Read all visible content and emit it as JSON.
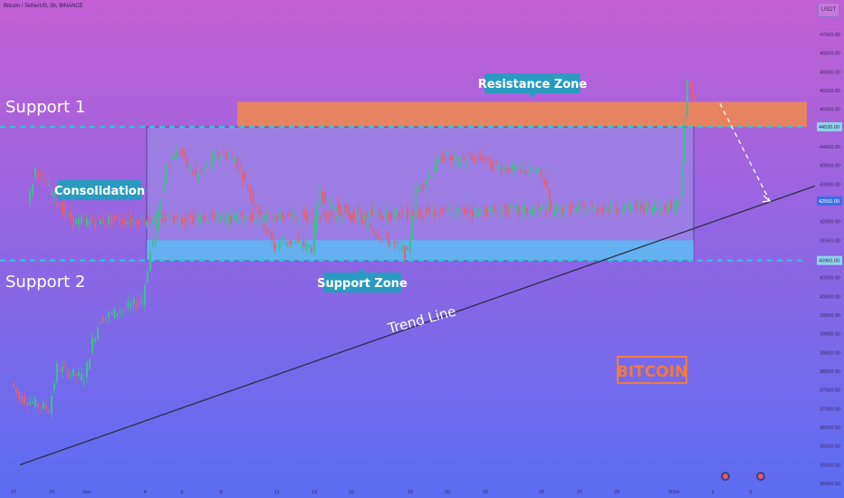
{
  "header": {
    "symbol_line": "Bitcoin / TetherUS, 3h, BINANCE"
  },
  "currency": "USDT",
  "brand_label": "BITCOIN",
  "labels": {
    "support1": "Support 1",
    "support2": "Support 2",
    "consolidation": "Consolidation",
    "resistance_zone": "Resistance Zone",
    "support_zone": "Support Zone",
    "trend_line": "Trend Line"
  },
  "colors": {
    "bg_top": "#c35fd4",
    "bg_bottom": "#5b6df2",
    "resistance_fill": "#f08a4b",
    "support_fill": "#5bb8f2",
    "consolidation_fill": "#9d87e6",
    "up_candle": "#3fbf8f",
    "down_candle": "#e0607a",
    "label_bg": "#2a9bc0",
    "brand": "#f07a40",
    "dashed": "#33c6d9",
    "trend": "#2a2d4a"
  },
  "chart_data": {
    "type": "candlestick",
    "y_axis_ticks": [
      "47000.00",
      "46500.00",
      "46000.00",
      "45500.00",
      "45000.00",
      "44500.00",
      "44000.00",
      "43500.00",
      "43000.00",
      "42500.00",
      "42000.00",
      "41500.00",
      "41000.00",
      "40500.00",
      "40000.00",
      "39500.00",
      "39000.00",
      "38500.00",
      "38000.00",
      "37500.00",
      "37000.00",
      "36500.00",
      "36000.00",
      "35500.00",
      "35000.00"
    ],
    "y_range": [
      34700,
      47400
    ],
    "x_axis_ticks": [
      "27",
      "29",
      "Dec",
      "4",
      "6",
      "8",
      "11",
      "13",
      "15",
      "18",
      "20",
      "22",
      "25",
      "27",
      "29",
      "2024",
      "3",
      "5"
    ],
    "price_markers": [
      "44530.00",
      "42550.00",
      "40960.00"
    ],
    "resistance_zone": [
      44530,
      45200
    ],
    "support_zone": [
      40960,
      41500
    ],
    "support1_level": 44530,
    "support2_level": 40960,
    "consolidation_range": [
      40960,
      44530
    ],
    "trend_line": [
      {
        "x": "27",
        "y": 35500
      },
      {
        "x": "5",
        "y": 42950
      }
    ],
    "projection": [
      {
        "y": 45150
      },
      {
        "y": 42550
      }
    ],
    "price_path": [
      {
        "x": "27",
        "y": 37700
      },
      {
        "x": "27",
        "y": 37300
      },
      {
        "x": "29",
        "y": 37000
      },
      {
        "x": "29",
        "y": 38100
      },
      {
        "x": "Dec",
        "y": 37800
      },
      {
        "x": "Dec",
        "y": 38800
      },
      {
        "x": "Dec",
        "y": 39400
      },
      {
        "x": "4",
        "y": 39900
      },
      {
        "x": "4",
        "y": 41200
      },
      {
        "x": "4",
        "y": 42200
      },
      {
        "x": "4",
        "y": 43600
      },
      {
        "x": "6",
        "y": 43900
      },
      {
        "x": "6",
        "y": 43500
      },
      {
        "x": "6",
        "y": 43200
      },
      {
        "x": "8",
        "y": 43800
      },
      {
        "x": "8",
        "y": 43800
      },
      {
        "x": "8",
        "y": 43700
      },
      {
        "x": "11",
        "y": 41300
      },
      {
        "x": "11",
        "y": 41500
      },
      {
        "x": "13",
        "y": 41300
      },
      {
        "x": "13",
        "y": 42900
      },
      {
        "x": "13",
        "y": 42500
      },
      {
        "x": "15",
        "y": 42200
      },
      {
        "x": "15",
        "y": 42100
      },
      {
        "x": "18",
        "y": 41100
      },
      {
        "x": "18",
        "y": 42800
      },
      {
        "x": "20",
        "y": 43800
      },
      {
        "x": "20",
        "y": 43600
      },
      {
        "x": "22",
        "y": 43700
      },
      {
        "x": "22",
        "y": 43500
      },
      {
        "x": "25",
        "y": 43300
      },
      {
        "x": "25",
        "y": 42900
      },
      {
        "x": "27",
        "y": 42400
      },
      {
        "x": "27",
        "y": 43400
      },
      {
        "x": "29",
        "y": 42200
      },
      {
        "x": "29",
        "y": 42000
      },
      {
        "x": "2024",
        "y": 42400
      },
      {
        "x": "2024",
        "y": 42600
      },
      {
        "x": "2024",
        "y": 45700
      },
      {
        "x": "2024",
        "y": 45300
      }
    ]
  }
}
